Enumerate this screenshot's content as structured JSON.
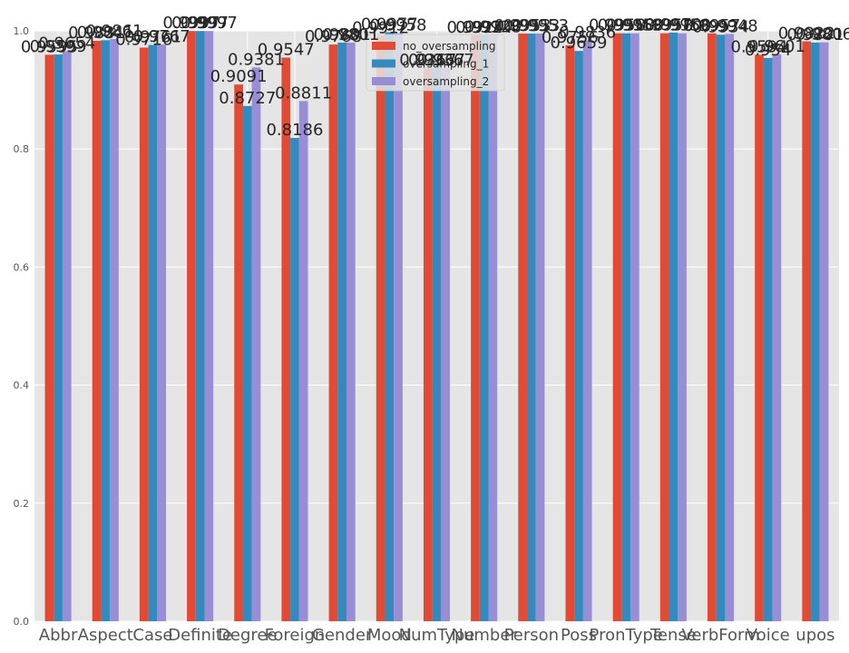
{
  "chart_data": {
    "type": "bar",
    "categories": [
      "Abbr",
      "Aspect",
      "Case",
      "Definite",
      "Degree",
      "Foreign",
      "Gender",
      "Mood",
      "NumType",
      "Number",
      "Person",
      "Poss",
      "PronType",
      "Tense",
      "VerbForm",
      "Voice",
      "upos"
    ],
    "series": [
      {
        "name": "no_oversampling",
        "color": "#e24a33",
        "values": [
          0.9595,
          0.9831,
          0.9716,
          0.9997,
          0.9091,
          0.9547,
          0.9768,
          0.9912,
          0.9367,
          0.9924,
          0.9953,
          0.9756,
          0.9958,
          0.9958,
          0.9957,
          0.9594,
          0.9822
        ]
      },
      {
        "name": "oversampling_1",
        "color": "#348abd",
        "values": [
          0.9599,
          0.9841,
          0.9761,
          0.9997,
          0.8727,
          0.8186,
          0.9801,
          0.9977,
          0.9367,
          0.9924,
          0.9953,
          0.9659,
          0.9958,
          0.997,
          0.9934,
          0.954,
          0.9801
        ]
      },
      {
        "name": "oversampling_2",
        "color": "#988ed5",
        "values": [
          0.9654,
          0.9861,
          0.9767,
          0.9997,
          0.9381,
          0.8811,
          0.9801,
          0.9958,
          0.9367,
          0.9928,
          0.9953,
          0.9836,
          0.9958,
          0.9958,
          0.9948,
          0.9601,
          0.9806
        ]
      }
    ],
    "data_labels": [
      [
        "0.9595",
        "0.9831",
        "0.9716",
        "0.9997",
        "0.9091",
        "0.9547",
        "0.9768",
        "0.9912",
        "0.9367",
        "0.9924",
        "0.9953",
        "0.9756",
        "0.9958",
        "0.9958",
        "0.9957",
        "0.9594",
        "0.9822"
      ],
      [
        "0.9599",
        "0.9841",
        "0.9761",
        "0.9997",
        "0.8727",
        "0.8186",
        "0.9801",
        "0.9977",
        "0.9367",
        "0.9924",
        "0.9953",
        "0.9659",
        "0.9958",
        "0.9970",
        "0.9934",
        "0.954",
        "0.9801"
      ],
      [
        "0.9654",
        "0.9861",
        "0.9767",
        "0.9997",
        "0.9381",
        "0.8811",
        "0.9801",
        "0.9958",
        "0.9367",
        "0.9928",
        "0.9953",
        "0.9836",
        "0.9958",
        "0.9958",
        "0.9948",
        "0.9601",
        "0.9806"
      ]
    ],
    "ylim": [
      0,
      1
    ],
    "yticks": [
      "0.0",
      "0.2",
      "0.4",
      "0.6",
      "0.8",
      "1.0"
    ],
    "ytick_values": [
      0,
      0.2,
      0.4,
      0.6,
      0.8,
      1.0
    ],
    "grid": true,
    "legend_position": "top-center",
    "style": "ggplot",
    "background_color": "#e5e5e5",
    "grid_color": "#ffffff"
  }
}
